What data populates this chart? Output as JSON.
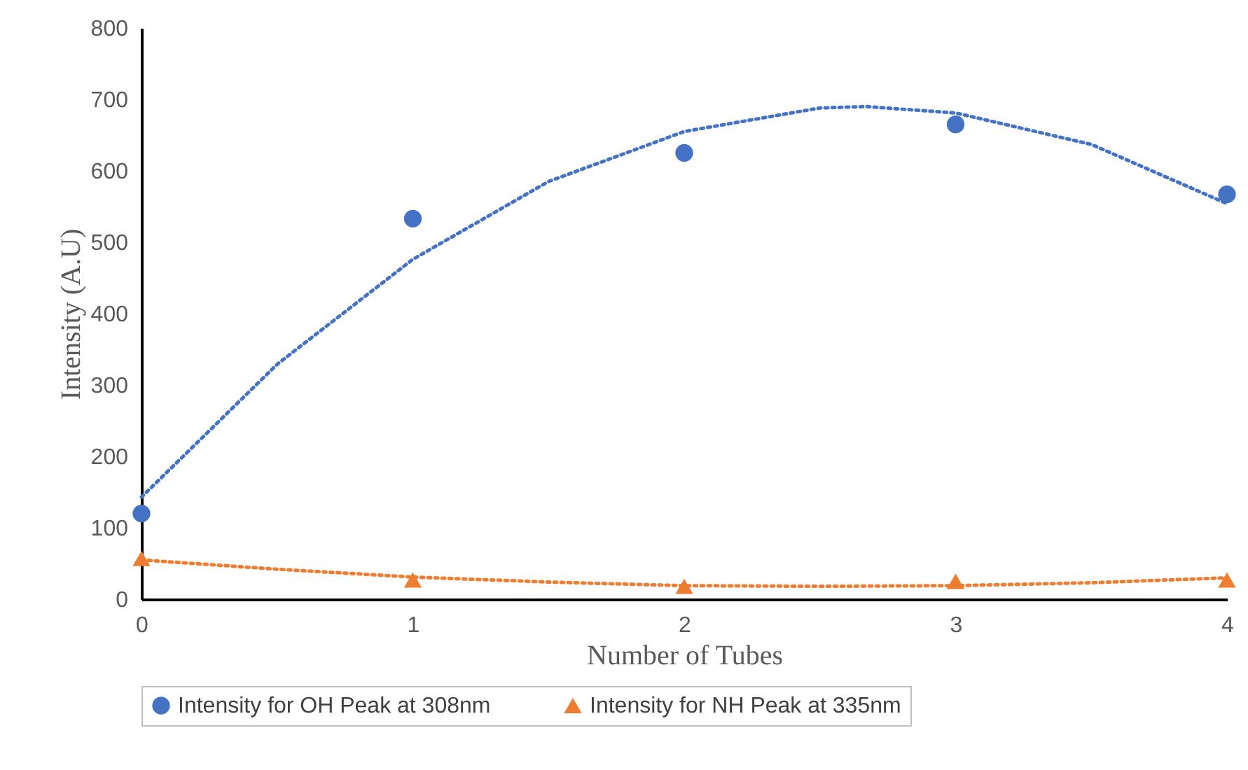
{
  "chart_data": {
    "type": "scatter",
    "xlabel": "Number of Tubes",
    "ylabel": "Intensity (A.U)",
    "xlim": [
      0,
      4
    ],
    "xticks": [
      0,
      1,
      2,
      3,
      4
    ],
    "ylim": [
      0,
      800
    ],
    "yticks": [
      0,
      100,
      200,
      300,
      400,
      500,
      600,
      700,
      800
    ],
    "grid": false,
    "legend": "bottom",
    "x": [
      0,
      1,
      2,
      3,
      4
    ],
    "series": [
      {
        "name": "Intensity for OH Peak at 308nm",
        "color": "#4472c4",
        "marker": "circle",
        "values": [
          120,
          533,
          625,
          665,
          567
        ]
      },
      {
        "name": "Intensity for NH Peak at 335nm",
        "color": "#ed7d31",
        "marker": "triangle",
        "values": [
          57,
          27,
          18,
          25,
          27
        ]
      },
      {
        "type": "line",
        "color": "#4472c4",
        "line_style": "dotted",
        "marker": "none",
        "x": [
          0,
          0.5,
          1,
          1.5,
          2,
          2.5,
          2.67,
          3,
          3.5,
          4
        ],
        "values": [
          143,
          329,
          476,
          585,
          655,
          688,
          690,
          681,
          637,
          554
        ]
      },
      {
        "type": "line",
        "color": "#ed7d31",
        "line_style": "dotted",
        "marker": "none",
        "x": [
          0,
          0.5,
          1,
          1.5,
          2,
          2.5,
          3,
          3.5,
          4
        ],
        "values": [
          55,
          42,
          31,
          24,
          19,
          18,
          19,
          23,
          30
        ]
      }
    ]
  }
}
